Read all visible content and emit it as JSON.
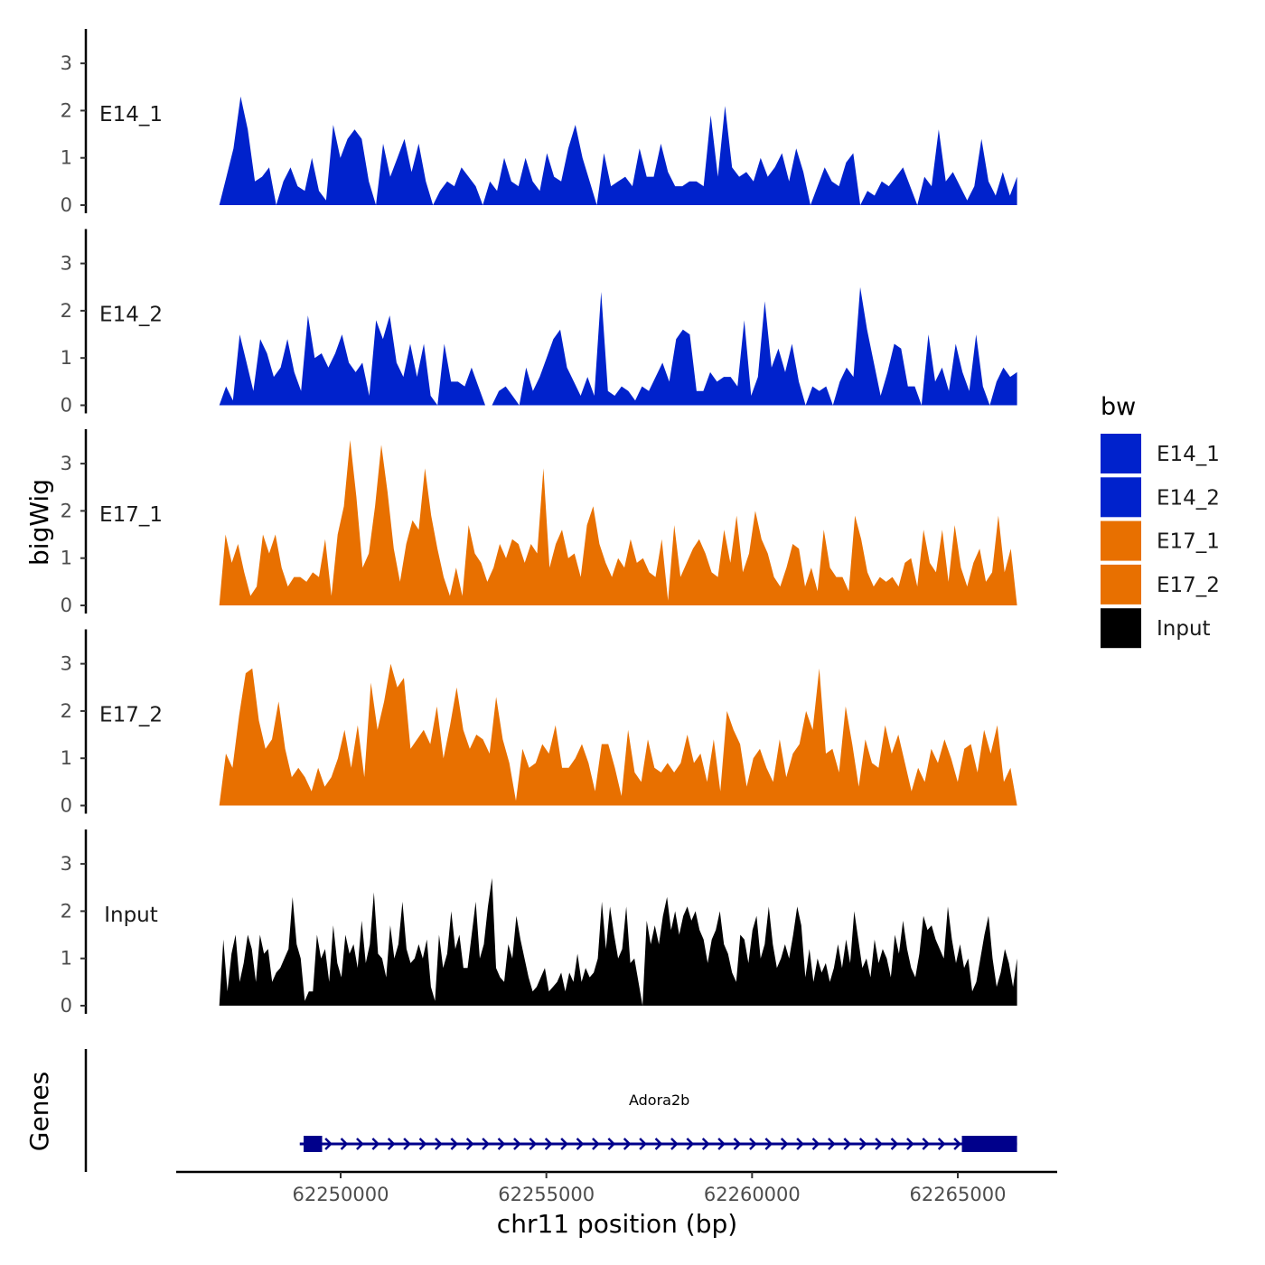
{
  "chart_data": {
    "type": "area",
    "ylabel": "bigWig",
    "xlabel": "chr11 position (bp)",
    "genes_label": "Genes",
    "xlim": [
      62245300,
      62267400
    ],
    "ylim": [
      0,
      3.7
    ],
    "yticks": [
      "0",
      "1",
      "2",
      "3"
    ],
    "xticks": [
      {
        "value": 62250000,
        "label": "62250000"
      },
      {
        "value": 62255000,
        "label": "62255000"
      },
      {
        "value": 62260000,
        "label": "62260000"
      },
      {
        "value": 62265000,
        "label": "62265000"
      }
    ],
    "legend": {
      "title": "bw",
      "items": [
        {
          "label": "E14_1",
          "color": "#0022cc"
        },
        {
          "label": "E14_2",
          "color": "#0022cc"
        },
        {
          "label": "E17_1",
          "color": "#e87000"
        },
        {
          "label": "E17_2",
          "color": "#e87000"
        },
        {
          "label": "Input",
          "color": "#000000"
        }
      ]
    },
    "tracks": [
      {
        "name": "E14_1",
        "color": "#0022cc",
        "x_start": 62247050,
        "x_end": 62266440,
        "values": [
          0,
          0.6,
          1.2,
          2.3,
          1.6,
          0.5,
          0.6,
          0.8,
          0,
          0.5,
          0.8,
          0.4,
          0.3,
          1.0,
          0.3,
          0.1,
          1.7,
          1.0,
          1.4,
          1.6,
          1.4,
          0.5,
          0,
          1.3,
          0.6,
          1.0,
          1.4,
          0.7,
          1.3,
          0.5,
          0,
          0.3,
          0.5,
          0.4,
          0.8,
          0.6,
          0.4,
          0,
          0.5,
          0.3,
          1.0,
          0.5,
          0.4,
          1.0,
          0.5,
          0.3,
          1.1,
          0.6,
          0.5,
          1.2,
          1.7,
          1.0,
          0.5,
          0,
          1.1,
          0.4,
          0.5,
          0.6,
          0.4,
          1.2,
          0.6,
          0.6,
          1.3,
          0.7,
          0.4,
          0.4,
          0.5,
          0.5,
          0.4,
          1.9,
          0.6,
          2.1,
          0.8,
          0.6,
          0.7,
          0.5,
          1.0,
          0.6,
          0.8,
          1.1,
          0.5,
          1.2,
          0.7,
          0,
          0.4,
          0.8,
          0.5,
          0.4,
          0.9,
          1.1,
          0,
          0.3,
          0.2,
          0.5,
          0.4,
          0.6,
          0.8,
          0.4,
          0,
          0.6,
          0.4,
          1.6,
          0.5,
          0.7,
          0.4,
          0.1,
          0.4,
          1.4,
          0.5,
          0.2,
          0.7,
          0.2,
          0.6
        ]
      },
      {
        "name": "E14_2",
        "color": "#0022cc",
        "x_start": 62247050,
        "x_end": 62266440,
        "values": [
          0,
          0.4,
          0.1,
          1.5,
          0.9,
          0.3,
          1.4,
          1.1,
          0.6,
          0.8,
          1.4,
          0.7,
          0.3,
          1.9,
          1.0,
          1.1,
          0.8,
          1.1,
          1.5,
          0.9,
          0.7,
          0.9,
          0.2,
          1.8,
          1.4,
          1.9,
          0.9,
          0.6,
          1.3,
          0.6,
          1.3,
          0.2,
          0,
          1.3,
          0.5,
          0.5,
          0.4,
          0.8,
          0.4,
          0,
          0,
          0.3,
          0.4,
          0.2,
          0,
          0.8,
          0.3,
          0.6,
          1.0,
          1.4,
          1.6,
          0.8,
          0.5,
          0.2,
          0.6,
          0.2,
          2.4,
          0.3,
          0.2,
          0.4,
          0.3,
          0.1,
          0.4,
          0.3,
          0.6,
          0.9,
          0.5,
          1.4,
          1.6,
          1.5,
          0.3,
          0.3,
          0.7,
          0.5,
          0.6,
          0.6,
          0.4,
          1.8,
          0.2,
          0.6,
          2.2,
          0.8,
          1.2,
          0.7,
          1.3,
          0.5,
          0,
          0.4,
          0.3,
          0.4,
          0,
          0.5,
          0.8,
          0.6,
          2.5,
          1.6,
          0.9,
          0.2,
          0.7,
          1.3,
          1.2,
          0.4,
          0.4,
          0,
          1.5,
          0.5,
          0.8,
          0.3,
          1.3,
          0.7,
          0.3,
          1.5,
          0.4,
          0,
          0.5,
          0.8,
          0.6,
          0.7
        ]
      },
      {
        "name": "E17_1",
        "color": "#e87000",
        "x_start": 62247050,
        "x_end": 62266440,
        "values": [
          0,
          1.5,
          0.9,
          1.3,
          0.7,
          0.2,
          0.4,
          1.5,
          1.1,
          1.5,
          0.8,
          0.4,
          0.6,
          0.6,
          0.5,
          0.7,
          0.6,
          1.4,
          0.2,
          1.5,
          2.1,
          3.5,
          2.3,
          0.8,
          1.1,
          2.1,
          3.4,
          2.4,
          1.2,
          0.5,
          1.3,
          1.8,
          1.6,
          2.9,
          1.9,
          1.2,
          0.6,
          0.2,
          0.8,
          0.2,
          1.7,
          1.1,
          0.9,
          0.5,
          0.8,
          1.3,
          1.0,
          1.4,
          1.3,
          0.9,
          1.3,
          1.1,
          2.9,
          0.8,
          1.3,
          1.6,
          1.0,
          1.1,
          0.6,
          1.7,
          2.1,
          1.3,
          0.9,
          0.6,
          1.0,
          0.8,
          1.4,
          0.9,
          1.0,
          0.7,
          0.6,
          1.4,
          0.1,
          1.7,
          0.6,
          0.9,
          1.2,
          1.4,
          1.1,
          0.7,
          0.6,
          1.6,
          0.9,
          1.9,
          0.7,
          1.1,
          2.0,
          1.4,
          1.1,
          0.6,
          0.4,
          0.8,
          1.3,
          1.2,
          0.4,
          0.8,
          0.3,
          1.6,
          0.8,
          0.6,
          0.6,
          0.3,
          1.9,
          1.4,
          0.7,
          0.4,
          0.6,
          0.5,
          0.6,
          0.4,
          0.9,
          1.0,
          0.4,
          1.6,
          0.9,
          0.7,
          1.6,
          0.5,
          1.7,
          0.8,
          0.4,
          0.9,
          1.2,
          0.5,
          0.7,
          1.9,
          0.7,
          1.2,
          0
        ]
      },
      {
        "name": "E17_2",
        "color": "#e87000",
        "x_start": 62247050,
        "x_end": 62266440,
        "values": [
          0,
          1.1,
          0.8,
          1.9,
          2.8,
          2.9,
          1.8,
          1.2,
          1.4,
          2.2,
          1.2,
          0.6,
          0.8,
          0.6,
          0.3,
          0.8,
          0.4,
          0.6,
          1.0,
          1.6,
          0.8,
          1.7,
          0.6,
          2.6,
          1.6,
          2.2,
          3.0,
          2.5,
          2.7,
          1.2,
          1.4,
          1.6,
          1.3,
          2.1,
          1.0,
          1.7,
          2.5,
          1.6,
          1.2,
          1.5,
          1.4,
          1.1,
          2.3,
          1.4,
          0.9,
          0.1,
          1.2,
          0.8,
          0.9,
          1.3,
          1.1,
          1.7,
          0.8,
          0.8,
          1.0,
          1.3,
          0.9,
          0.3,
          1.3,
          1.3,
          0.8,
          0.2,
          1.6,
          0.7,
          0.5,
          1.4,
          0.8,
          0.7,
          0.9,
          0.7,
          0.9,
          1.5,
          0.9,
          1.1,
          0.5,
          1.4,
          0.3,
          2.0,
          1.6,
          1.3,
          0.4,
          1.0,
          1.2,
          0.8,
          0.5,
          1.4,
          0.6,
          1.1,
          1.3,
          2.0,
          1.6,
          2.9,
          1.1,
          1.2,
          0.7,
          2.1,
          1.3,
          0.4,
          1.4,
          0.9,
          0.8,
          1.7,
          1.1,
          1.5,
          0.9,
          0.3,
          0.8,
          0.5,
          1.2,
          0.9,
          1.4,
          1.0,
          0.5,
          1.2,
          1.3,
          0.7,
          1.6,
          1.1,
          1.7,
          0.5,
          0.8,
          0
        ]
      },
      {
        "name": "Input",
        "color": "#000000",
        "x_start": 62247050,
        "x_end": 62266440,
        "values": [
          0,
          1.4,
          0.3,
          1.1,
          1.5,
          0.5,
          0.9,
          1.5,
          1.2,
          0.5,
          1.5,
          1.1,
          1.2,
          0.5,
          0.7,
          0.8,
          1.0,
          1.2,
          2.3,
          1.3,
          1.0,
          0.1,
          0.3,
          0.3,
          1.5,
          1.0,
          1.2,
          0.5,
          1.7,
          0.9,
          0.6,
          1.5,
          1.1,
          1.3,
          0.8,
          1.8,
          0.9,
          1.3,
          2.4,
          1.1,
          1.0,
          0.6,
          1.7,
          1.0,
          1.3,
          2.2,
          1.2,
          0.9,
          1.0,
          1.3,
          1.0,
          1.4,
          0.4,
          0.1,
          1.5,
          0.8,
          1.1,
          2.0,
          1.2,
          1.5,
          0.8,
          0.8,
          1.5,
          2.2,
          1.0,
          1.3,
          2.1,
          2.7,
          0.8,
          0.6,
          0.5,
          1.3,
          1.0,
          1.9,
          1.4,
          1.0,
          0.6,
          0.3,
          0.4,
          0.6,
          0.8,
          0.3,
          0.4,
          0.5,
          0.7,
          0.3,
          0.7,
          0.5,
          1.1,
          0.5,
          0.8,
          0.6,
          0.7,
          1.0,
          2.2,
          1.2,
          2.1,
          1.5,
          1.0,
          1.2,
          2.1,
          0.9,
          1.0,
          0.5,
          0,
          1.8,
          1.3,
          1.7,
          1.3,
          1.9,
          2.3,
          1.6,
          2.0,
          1.5,
          1.9,
          2.1,
          1.8,
          2.0,
          1.6,
          1.4,
          0.9,
          1.4,
          1.6,
          2.0,
          1.3,
          1.1,
          0.7,
          0.5,
          1.5,
          1.4,
          0.9,
          1.6,
          1.9,
          1.0,
          1.3,
          2.1,
          1.3,
          0.8,
          1.0,
          1.3,
          1.0,
          1.5,
          2.1,
          1.7,
          0.6,
          1.2,
          0.5,
          1.0,
          0.7,
          0.9,
          0.5,
          0.8,
          1.3,
          0.8,
          1.4,
          0.9,
          2.0,
          1.4,
          0.8,
          1.0,
          0.6,
          1.4,
          0.9,
          1.2,
          1.0,
          0.6,
          1.5,
          1.1,
          1.8,
          1.2,
          0.8,
          0.6,
          1.1,
          1.9,
          1.6,
          1.7,
          1.4,
          1.2,
          1.0,
          2.1,
          1.4,
          0.9,
          1.3,
          0.8,
          1.0,
          0.3,
          0.5,
          1.0,
          1.5,
          1.9,
          1.0,
          0.4,
          0.7,
          1.2,
          0.9,
          0.4,
          1.0
        ]
      }
    ],
    "gene": {
      "name": "Adora2b",
      "strand": "+",
      "start": 62249050,
      "end": 62266440,
      "exons": [
        [
          62249100,
          62249550
        ],
        [
          62265100,
          62266440
        ]
      ]
    }
  }
}
